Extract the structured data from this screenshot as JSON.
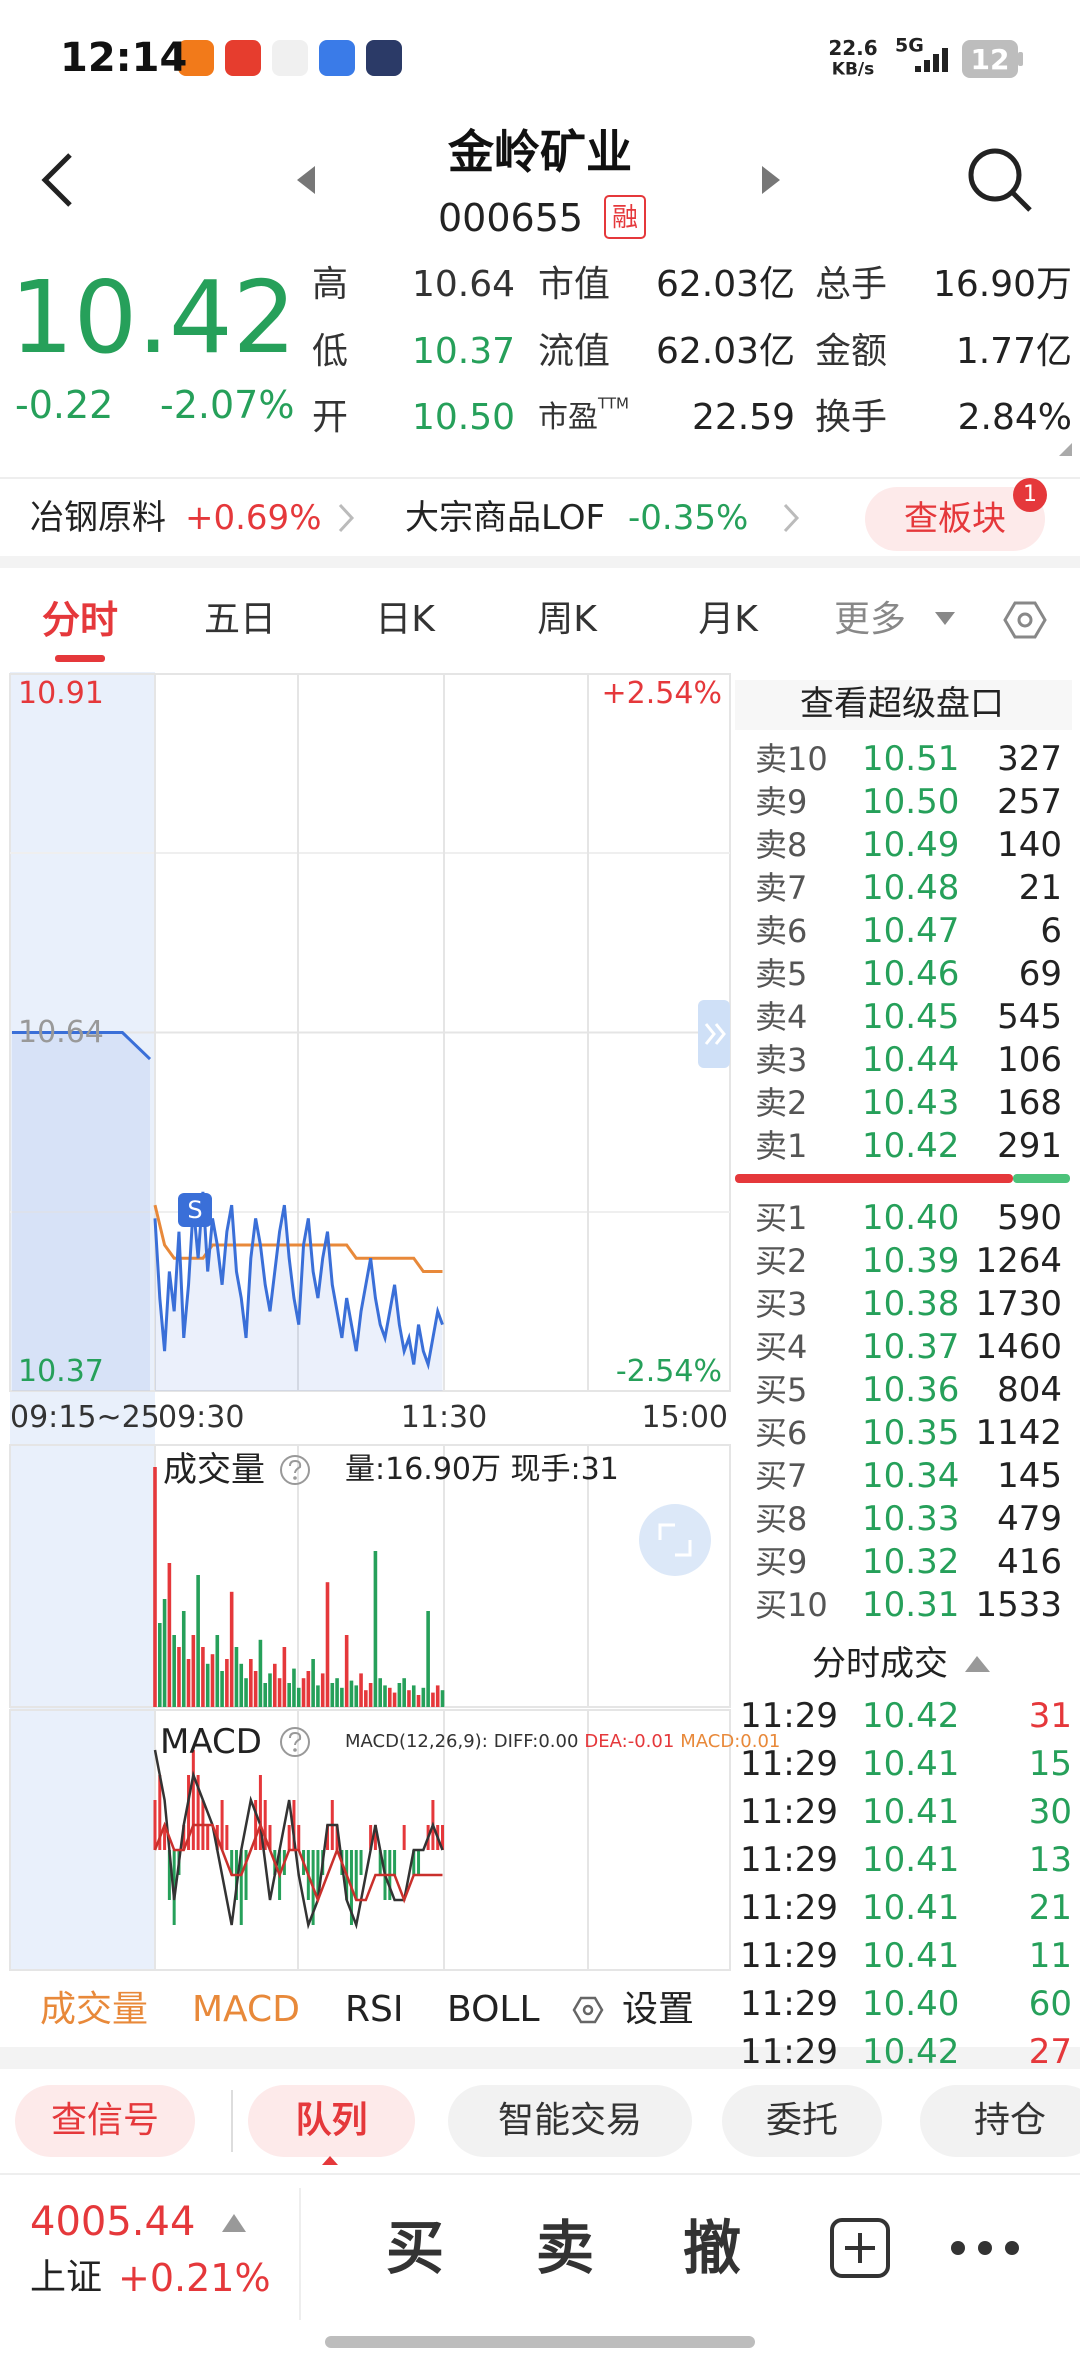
{
  "status_bar": {
    "time": "12:14",
    "speed": "22.6",
    "speed_unit": "KB/s",
    "network": "5G",
    "battery": "12"
  },
  "header": {
    "title": "金岭矿业",
    "code": "000655",
    "badge": "融"
  },
  "quote": {
    "price": "10.42",
    "change": "-0.22",
    "change_pct": "-2.07%",
    "stats": [
      [
        "高",
        "10.64",
        "市值",
        "62.03亿",
        "总手",
        "16.90万"
      ],
      [
        "低",
        "10.37",
        "流值",
        "62.03亿",
        "金额",
        "1.77亿"
      ],
      [
        "开",
        "10.50",
        "市盈",
        "22.59",
        "换手",
        "2.84%"
      ]
    ],
    "ttm": "TTM"
  },
  "sectors": [
    {
      "name": "冶钢原料",
      "change": "+0.69%"
    },
    {
      "name": "大宗商品LOF",
      "change": "-0.35%"
    }
  ],
  "sector_button": "查板块",
  "sector_badge": "1",
  "tabs": [
    "分时",
    "五日",
    "日K",
    "周K",
    "月K",
    "更多"
  ],
  "chart": {
    "price_high": 10.91,
    "price_mid": 10.64,
    "price_low": 10.37,
    "pct_high": "+2.54%",
    "pct_low": "-2.54%",
    "times": [
      "09:15~25",
      "09:30",
      "11:30",
      "15:00"
    ],
    "signal": "S",
    "premarket": [
      10.64,
      10.64,
      10.64,
      10.64,
      10.64,
      10.62
    ],
    "price": [
      10.5,
      10.44,
      10.4,
      10.46,
      10.43,
      10.49,
      10.41,
      10.45,
      10.51,
      10.47,
      10.52,
      10.46,
      10.5,
      10.48,
      10.45,
      10.49,
      10.51,
      10.46,
      10.44,
      10.41,
      10.47,
      10.5,
      10.48,
      10.45,
      10.43,
      10.46,
      10.49,
      10.51,
      10.47,
      10.44,
      10.42,
      10.48,
      10.5,
      10.46,
      10.44,
      10.47,
      10.49,
      10.45,
      10.43,
      10.41,
      10.44,
      10.42,
      10.4,
      10.43,
      10.45,
      10.47,
      10.44,
      10.42,
      10.41,
      10.43,
      10.45,
      10.42,
      10.4,
      10.41,
      10.39,
      10.42,
      10.4,
      10.39,
      10.41,
      10.43,
      10.42
    ],
    "avg": [
      10.51,
      10.48,
      10.47,
      10.47,
      10.47,
      10.47,
      10.48,
      10.48,
      10.48,
      10.48,
      10.48,
      10.48,
      10.48,
      10.48,
      10.48,
      10.48,
      10.48,
      10.48,
      10.48,
      10.48,
      10.48,
      10.47,
      10.47,
      10.47,
      10.47,
      10.47,
      10.47,
      10.47,
      10.46,
      10.46,
      10.46
    ],
    "volume_title": "成交量",
    "volume_info": "量:16.90万 现手:31",
    "volume": [
      100,
      35,
      45,
      60,
      30,
      25,
      40,
      20,
      30,
      55,
      25,
      18,
      22,
      30,
      15,
      20,
      48,
      25,
      18,
      12,
      20,
      15,
      28,
      10,
      14,
      18,
      12,
      25,
      10,
      16,
      8,
      12,
      15,
      20,
      9,
      14,
      52,
      10,
      12,
      8,
      30,
      11,
      9,
      14,
      7,
      10,
      65,
      12,
      9,
      8,
      6,
      10,
      12,
      7,
      9,
      5,
      8,
      40,
      6,
      9,
      7
    ],
    "macd_title": "MACD",
    "macd_params": "MACD(12,26,9):",
    "diff_label": "DIFF:0.00",
    "dea_label": "DEA:-0.01",
    "macd_label": "MACD:0.01",
    "macd": [
      0.02,
      0.03,
      0.01,
      -0.02,
      -0.03,
      -0.01,
      0.01,
      0.03,
      0.04,
      0.03,
      0.02,
      0.01,
      0.0,
      0.01,
      0.02,
      0.01,
      -0.01,
      -0.02,
      -0.03,
      -0.02,
      0.0,
      0.02,
      0.03,
      0.02,
      0.01,
      -0.01,
      -0.02,
      -0.01,
      0.01,
      0.02,
      0.01,
      -0.01,
      -0.02,
      -0.03,
      -0.02,
      -0.01,
      0.01,
      0.02,
      0.01,
      -0.01,
      -0.02,
      -0.03,
      -0.02,
      -0.01,
      0.0,
      0.01,
      0.01,
      -0.01,
      -0.02,
      -0.02,
      -0.01,
      0.0,
      0.01,
      0.0,
      -0.01,
      -0.01,
      0.0,
      0.01,
      0.02,
      0.01,
      0.01
    ],
    "diff": [
      0.04,
      0.02,
      -0.02,
      0.01,
      0.03,
      0.02,
      0.01,
      -0.01,
      -0.03,
      0.0,
      0.02,
      0.01,
      -0.02,
      0.0,
      0.02,
      -0.01,
      -0.03,
      -0.02,
      0.01,
      0.01,
      -0.02,
      -0.03,
      -0.01,
      0.01,
      -0.01,
      -0.02,
      -0.02,
      0.0,
      0.0,
      0.01,
      0.0
    ],
    "dea": [
      0.0,
      0.01,
      0.0,
      0.0,
      0.01,
      0.01,
      0.01,
      0.0,
      -0.01,
      -0.01,
      0.0,
      0.01,
      0.0,
      -0.01,
      0.0,
      0.0,
      -0.01,
      -0.02,
      -0.01,
      0.0,
      -0.01,
      -0.02,
      -0.02,
      -0.01,
      -0.01,
      -0.01,
      -0.02,
      -0.01,
      -0.01,
      -0.01,
      -0.01
    ]
  },
  "indicator_tabs": [
    "成交量",
    "MACD",
    "RSI",
    "BOLL",
    "设置"
  ],
  "order_book": {
    "title": "查看超级盘口",
    "sell": [
      [
        "卖10",
        "10.51",
        327
      ],
      [
        "卖9",
        "10.50",
        257
      ],
      [
        "卖8",
        "10.49",
        140
      ],
      [
        "卖7",
        "10.48",
        21
      ],
      [
        "卖6",
        "10.47",
        6
      ],
      [
        "卖5",
        "10.46",
        69
      ],
      [
        "卖4",
        "10.45",
        545
      ],
      [
        "卖3",
        "10.44",
        106
      ],
      [
        "卖2",
        "10.43",
        168
      ],
      [
        "卖1",
        "10.42",
        291
      ]
    ],
    "buy": [
      [
        "买1",
        "10.40",
        590
      ],
      [
        "买2",
        "10.39",
        1264
      ],
      [
        "买3",
        "10.38",
        1730
      ],
      [
        "买4",
        "10.37",
        1460
      ],
      [
        "买5",
        "10.36",
        804
      ],
      [
        "买6",
        "10.35",
        1142
      ],
      [
        "买7",
        "10.34",
        145
      ],
      [
        "买8",
        "10.33",
        479
      ],
      [
        "买9",
        "10.32",
        416
      ],
      [
        "买10",
        "10.31",
        1533
      ]
    ]
  },
  "trades": {
    "title": "分时成交",
    "rows": [
      {
        "time": "11:29",
        "price": "10.42",
        "volume": 31,
        "color": "red"
      },
      {
        "time": "11:29",
        "price": "10.41",
        "volume": 15,
        "color": "green"
      },
      {
        "time": "11:29",
        "price": "10.41",
        "volume": 30,
        "color": "green"
      },
      {
        "time": "11:29",
        "price": "10.41",
        "volume": 13,
        "color": "green"
      },
      {
        "time": "11:29",
        "price": "10.41",
        "volume": 21,
        "color": "green"
      },
      {
        "time": "11:29",
        "price": "10.41",
        "volume": 11,
        "color": "green"
      },
      {
        "time": "11:29",
        "price": "10.40",
        "volume": 60,
        "color": "green"
      },
      {
        "time": "11:29",
        "price": "10.42",
        "volume": 27,
        "color": "red"
      }
    ]
  },
  "bottom_tabs": [
    "查信号",
    "队列",
    "智能交易",
    "委托",
    "持仓"
  ],
  "footer": {
    "index_value": "4005.44",
    "index_name": "上证",
    "index_change": "+0.21%",
    "actions": [
      "买",
      "卖",
      "撤"
    ]
  }
}
